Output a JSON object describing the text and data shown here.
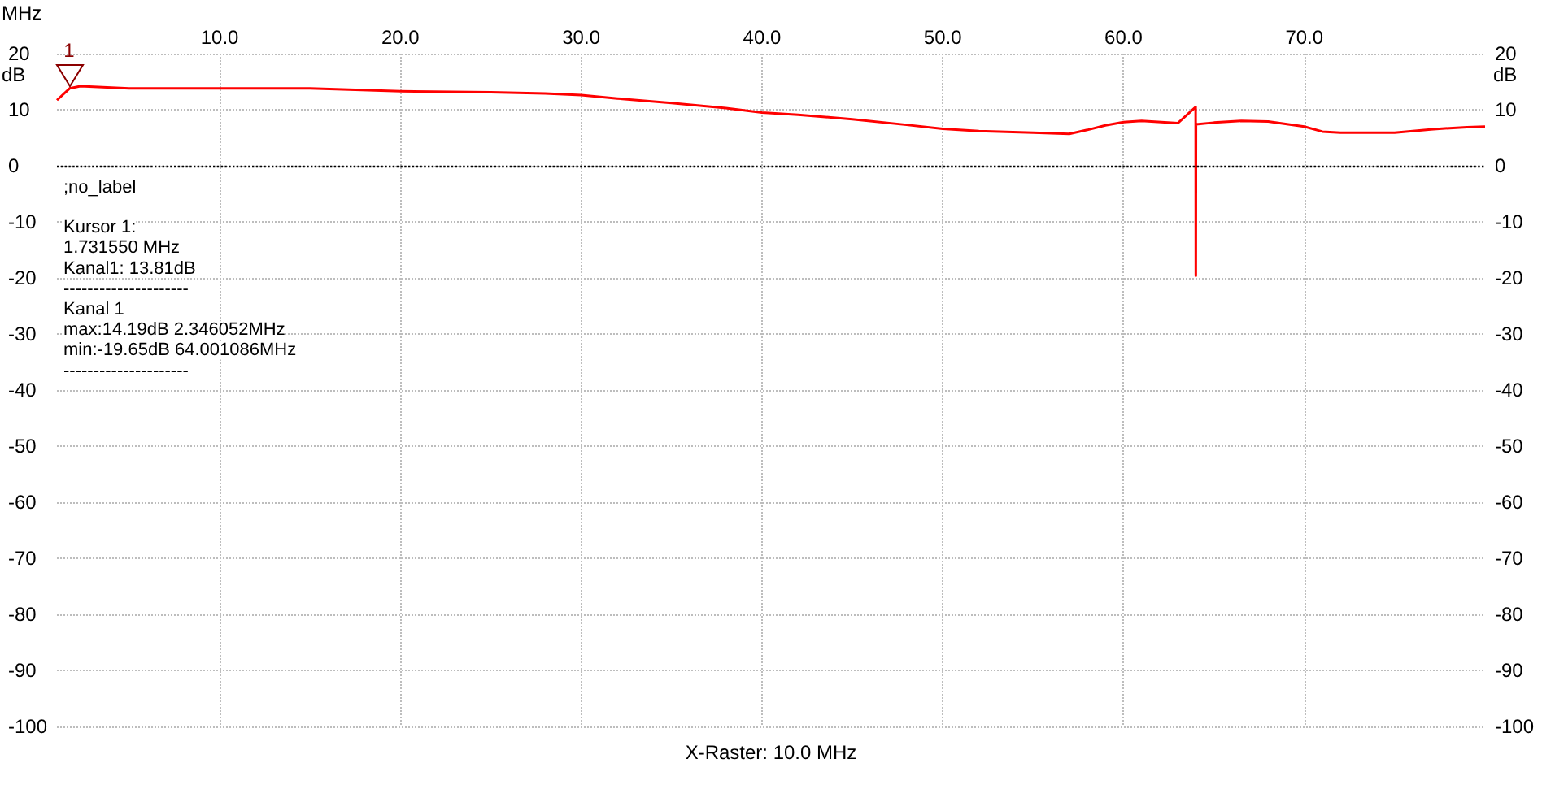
{
  "chart_data": {
    "type": "line",
    "xlabel": "MHz",
    "ylabel": "dB",
    "y2label": "dB",
    "x": [
      1.0,
      1.7,
      2.3,
      5,
      10,
      15,
      20,
      25,
      28,
      30,
      32,
      35,
      38,
      40,
      42,
      45,
      48,
      50,
      52,
      55,
      57,
      58,
      59,
      60,
      61,
      63,
      63.99,
      64.0,
      64.01,
      65,
      66.5,
      68,
      70,
      71,
      72,
      75,
      77,
      79,
      80
    ],
    "series": [
      {
        "color": "#ff0000",
        "values": [
          11.7,
          13.8,
          14.2,
          13.8,
          13.8,
          13.8,
          13.3,
          13.1,
          12.9,
          12.6,
          12.0,
          11.2,
          10.3,
          9.5,
          9.1,
          8.3,
          7.3,
          6.6,
          6.2,
          5.9,
          5.7,
          6.4,
          7.2,
          7.8,
          8.0,
          7.6,
          10.5,
          -19.65,
          7.4,
          7.7,
          8.0,
          7.9,
          7.0,
          6.1,
          5.9,
          5.9,
          6.5,
          6.9,
          7.0
        ]
      }
    ],
    "xlim": [
      1,
      80
    ],
    "xticks": [
      {
        "value": 10,
        "label": "10.0"
      },
      {
        "value": 20,
        "label": "20.0"
      },
      {
        "value": 30,
        "label": "30.0"
      },
      {
        "value": 40,
        "label": "40.0"
      },
      {
        "value": 50,
        "label": "50.0"
      },
      {
        "value": 60,
        "label": "60.0"
      },
      {
        "value": 70,
        "label": "70.0"
      }
    ],
    "ylim": [
      -100,
      20
    ],
    "yticks": [
      -100,
      -90,
      -80,
      -70,
      -60,
      -50,
      -40,
      -30,
      -20,
      -10,
      0,
      10,
      20
    ],
    "y2lim": [
      -100,
      20
    ],
    "y2ticks": [
      -100,
      -90,
      -80,
      -70,
      -60,
      -50,
      -40,
      -30,
      -20,
      -10,
      0,
      10,
      20
    ],
    "ref_lines": [
      {
        "axis": "y",
        "value": 0,
        "color": "#000000",
        "line_style": "dotted"
      }
    ],
    "annotations": [
      {
        "text": "1",
        "x": 1.73155,
        "y": 13.81
      },
      ";no_label",
      "Kursor 1:",
      "1.731550 MHz",
      "Kanal1: 13.81dB",
      "---------------------",
      "Kanal 1",
      "max:14.19dB 2.346052MHz",
      "min:-19.65dB 64.001086MHz",
      "---------------------",
      "X-Raster: 10.0 MHz"
    ],
    "grid": true,
    "marker": "none",
    "line_style": "solid"
  }
}
